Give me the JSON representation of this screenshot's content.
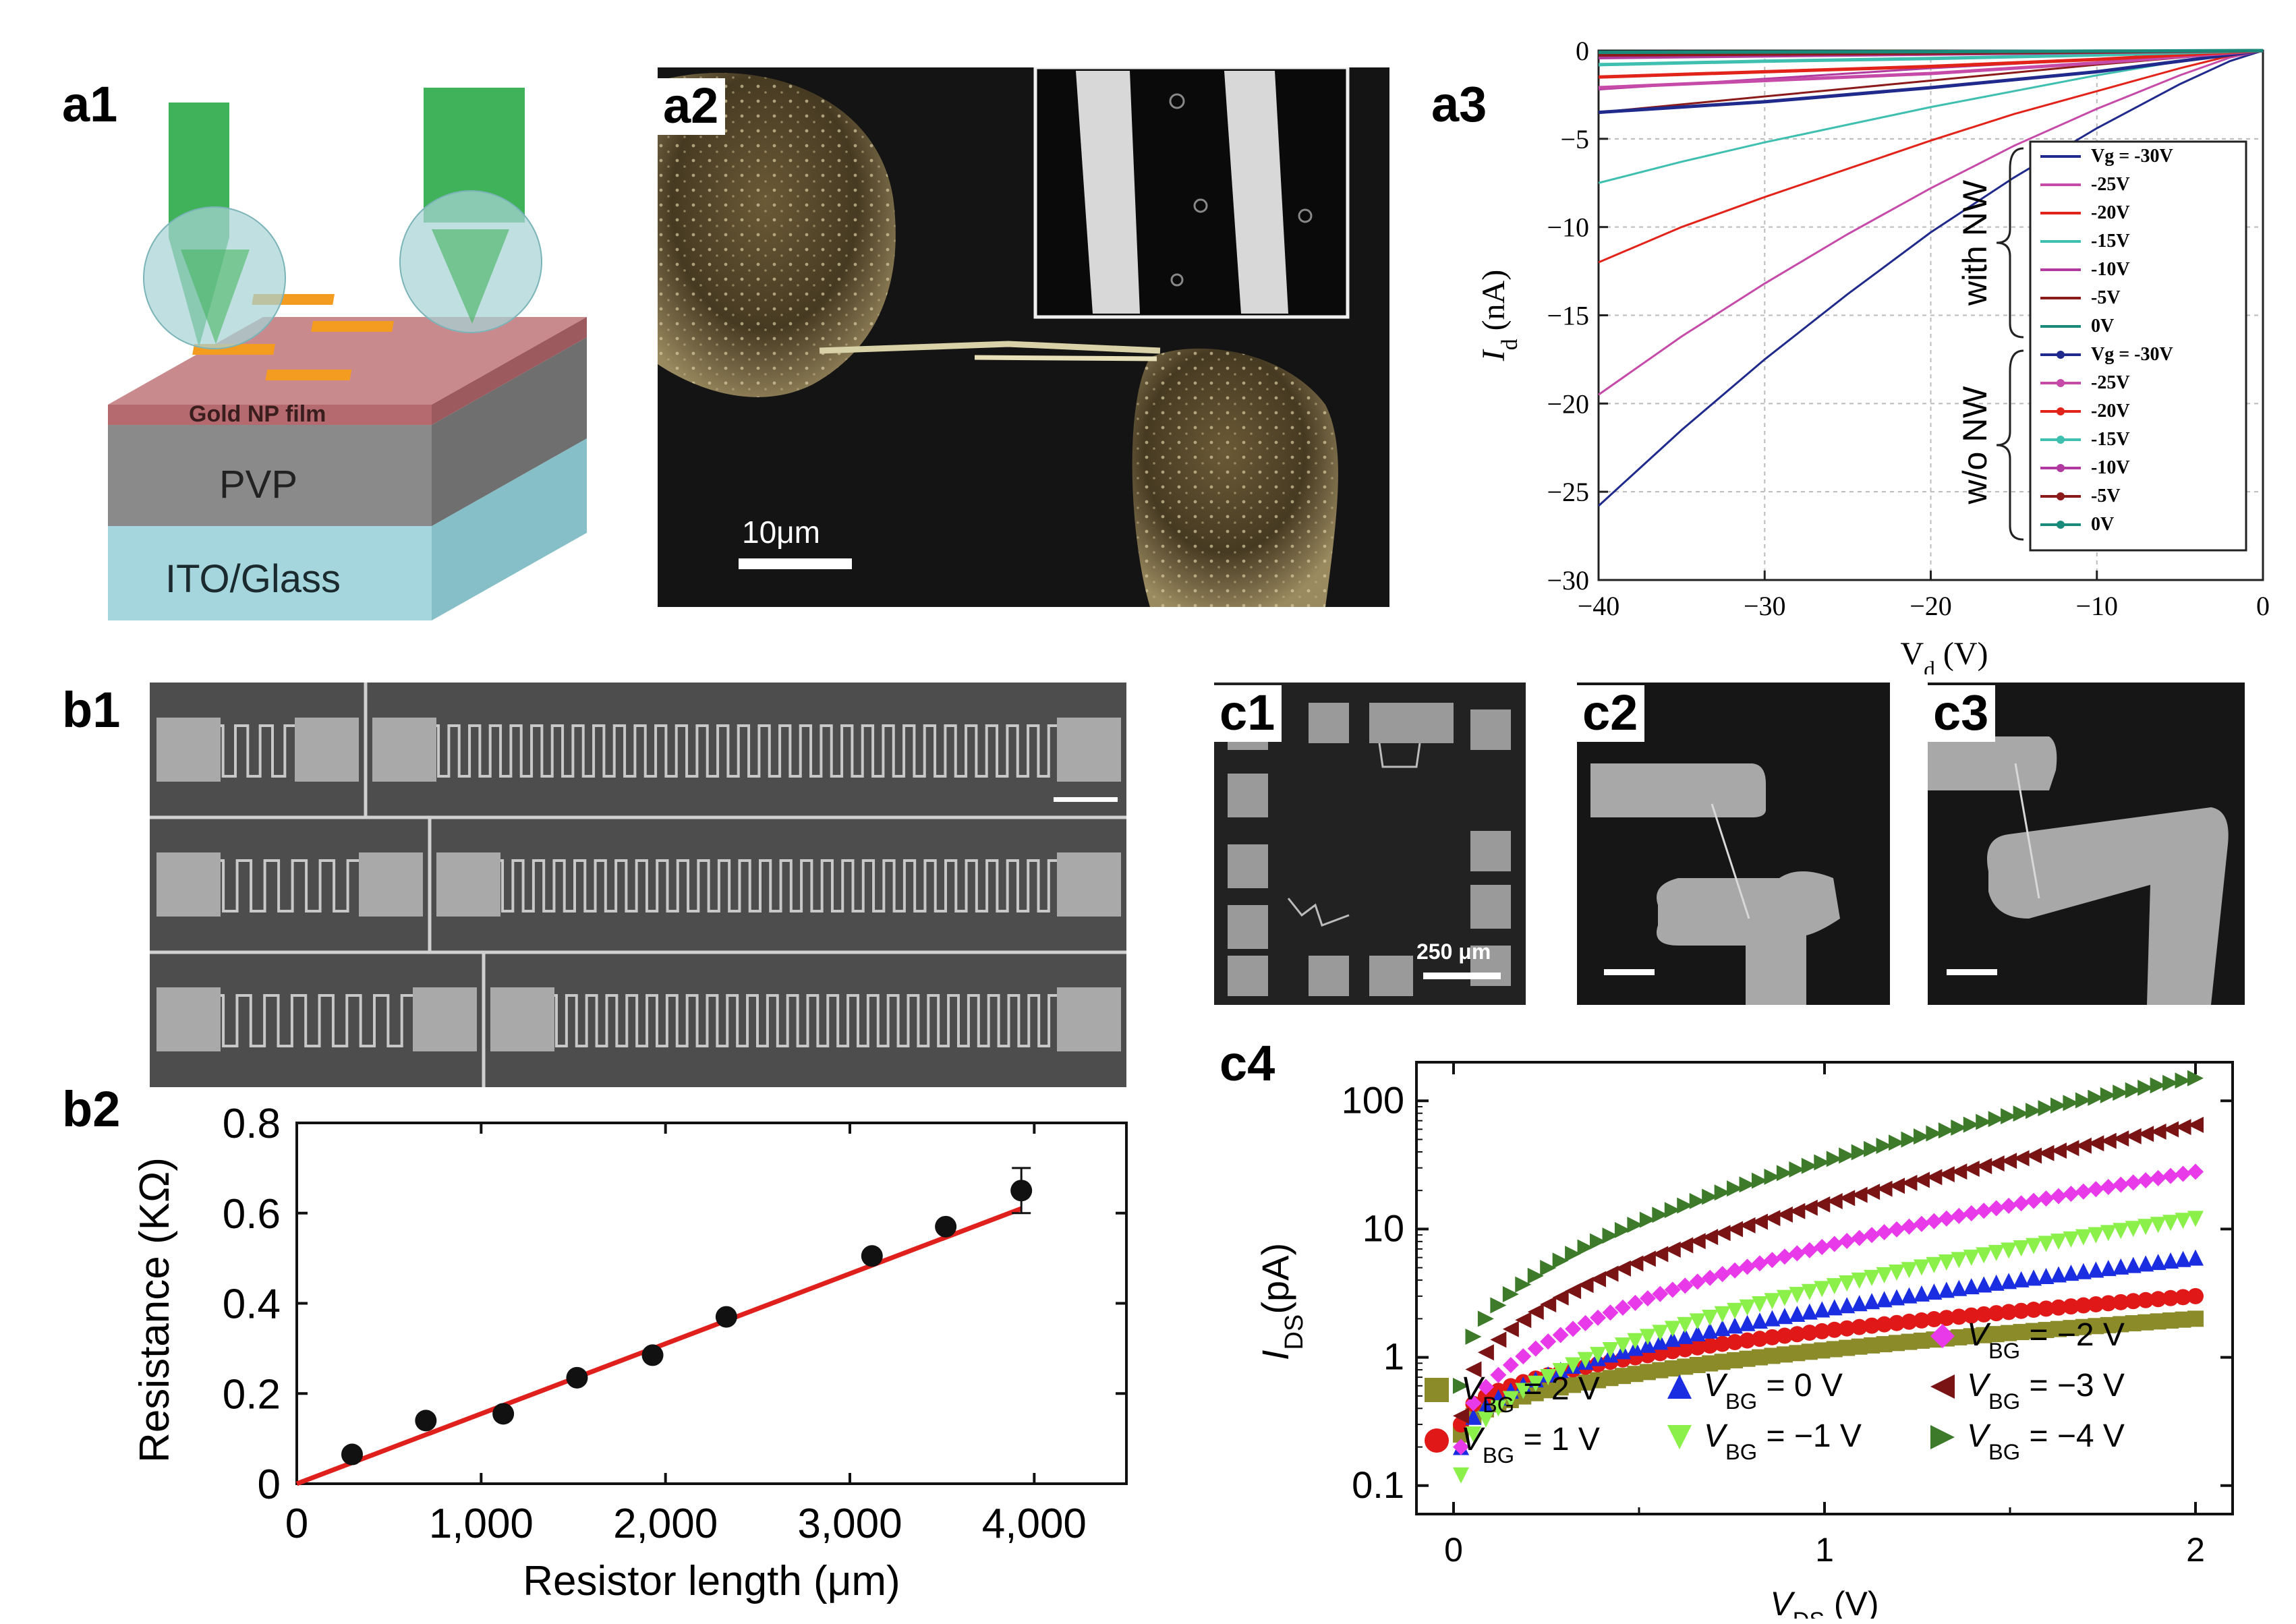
{
  "panels": {
    "a1": "a1",
    "a2": "a2",
    "a3": "a3",
    "b1": "b1",
    "b2": "b2",
    "c1": "c1",
    "c2": "c2",
    "c3": "c3",
    "c4": "c4"
  },
  "a1_diagram": {
    "layer_top": "Gold NP film",
    "layer_mid": "PVP",
    "layer_bottom": "ITO/Glass",
    "colors": {
      "probe": "#3fb25a",
      "top": "#b46a6f",
      "mid": "#8a8a8a",
      "bottom": "#a6d6dd",
      "nanowire": "#f39c1f"
    }
  },
  "a2_image": {
    "scale_bar": "10μm"
  },
  "c1_image": {
    "scale_bar": "250 μm"
  },
  "chart_data": [
    {
      "id": "a3",
      "type": "line",
      "xlabel": "V_d (V)",
      "ylabel": "I_d (nA)",
      "xlim": [
        -40,
        0
      ],
      "ylim": [
        -30,
        0
      ],
      "xticks": [
        -40,
        -30,
        -20,
        -10,
        0
      ],
      "yticks": [
        0,
        -5,
        -10,
        -15,
        -20,
        -25,
        -30
      ],
      "grid": true,
      "group_labels": [
        "with NW",
        "w/o NW"
      ],
      "series": [
        {
          "name": "Vg = -30V",
          "group": "with NW",
          "color": "#1f2a8c",
          "x": [
            -40,
            -35,
            -30,
            -25,
            -20,
            -15,
            -10,
            -5,
            -2,
            0
          ],
          "y": [
            -25.8,
            -21.5,
            -17.5,
            -13.8,
            -10.3,
            -7.2,
            -4.4,
            -1.9,
            -0.6,
            0
          ]
        },
        {
          "name": "-25V",
          "group": "with NW",
          "color": "#c64aa8",
          "x": [
            -40,
            -35,
            -30,
            -25,
            -20,
            -15,
            -10,
            -5,
            -2,
            0
          ],
          "y": [
            -19.5,
            -16.2,
            -13.2,
            -10.4,
            -7.8,
            -5.4,
            -3.3,
            -1.4,
            -0.4,
            0
          ]
        },
        {
          "name": "-20V",
          "group": "with NW",
          "color": "#e2231a",
          "x": [
            -40,
            -35,
            -30,
            -25,
            -20,
            -15,
            -10,
            -5,
            -2,
            0
          ],
          "y": [
            -12,
            -10,
            -8.3,
            -6.7,
            -5.1,
            -3.6,
            -2.3,
            -1.0,
            -0.3,
            0
          ]
        },
        {
          "name": "-15V",
          "group": "with NW",
          "color": "#3fbfb0",
          "x": [
            -40,
            -35,
            -30,
            -25,
            -20,
            -15,
            -10,
            -5,
            -2,
            0
          ],
          "y": [
            -7.5,
            -6.3,
            -5.2,
            -4.2,
            -3.2,
            -2.3,
            -1.4,
            -0.6,
            -0.2,
            0
          ]
        },
        {
          "name": "-10V",
          "group": "with NW",
          "color": "#b03aa0",
          "x": [
            -40,
            -30,
            -20,
            -10,
            0
          ],
          "y": [
            -2.2,
            -1.6,
            -1.0,
            -0.5,
            0
          ]
        },
        {
          "name": "-5V",
          "group": "with NW",
          "color": "#8b1a1a",
          "x": [
            -40,
            -30,
            -20,
            -10,
            0
          ],
          "y": [
            -3.5,
            -2.6,
            -1.7,
            -0.8,
            0
          ]
        },
        {
          "name": "0V",
          "group": "with NW",
          "color": "#1a8a7a",
          "x": [
            -40,
            -30,
            -20,
            -10,
            0
          ],
          "y": [
            -0.2,
            -0.15,
            -0.1,
            -0.05,
            0
          ]
        },
        {
          "name": "Vg = -30V",
          "group": "w/o NW",
          "color": "#1f2a8c",
          "marker": "circle",
          "x": [
            -40,
            -30,
            -20,
            -10,
            0
          ],
          "y": [
            -3.5,
            -2.9,
            -2.1,
            -1.2,
            0
          ]
        },
        {
          "name": "-25V",
          "group": "w/o NW",
          "color": "#c64aa8",
          "marker": "square",
          "x": [
            -40,
            -30,
            -20,
            -10,
            0
          ],
          "y": [
            -2.1,
            -1.7,
            -1.3,
            -0.7,
            0
          ]
        },
        {
          "name": "-20V",
          "group": "w/o NW",
          "color": "#e2231a",
          "marker": "triangle",
          "x": [
            -40,
            -30,
            -20,
            -10,
            0
          ],
          "y": [
            -1.5,
            -1.2,
            -0.9,
            -0.5,
            0
          ]
        },
        {
          "name": "-15V",
          "group": "w/o NW",
          "color": "#3fbfb0",
          "marker": "x",
          "x": [
            -40,
            -30,
            -20,
            -10,
            0
          ],
          "y": [
            -0.8,
            -0.6,
            -0.45,
            -0.25,
            0
          ]
        },
        {
          "name": "-10V",
          "group": "w/o NW",
          "color": "#b03aa0",
          "marker": "star",
          "x": [
            -40,
            -30,
            -20,
            -10,
            0
          ],
          "y": [
            -0.4,
            -0.3,
            -0.2,
            -0.1,
            0
          ]
        },
        {
          "name": "-5V",
          "group": "w/o NW",
          "color": "#8b1a1a",
          "marker": "dot",
          "x": [
            -40,
            -30,
            -20,
            -10,
            0
          ],
          "y": [
            -0.25,
            -0.2,
            -0.15,
            -0.08,
            0
          ]
        },
        {
          "name": "0V",
          "group": "w/o NW",
          "color": "#1a8a7a",
          "marker": "plus",
          "x": [
            -40,
            -30,
            -20,
            -10,
            0
          ],
          "y": [
            -0.1,
            -0.08,
            -0.06,
            -0.03,
            0
          ]
        }
      ]
    },
    {
      "id": "b2",
      "type": "scatter",
      "xlabel": "Resistor length (μm)",
      "ylabel": "Resistance (KΩ)",
      "xlim": [
        0,
        4500
      ],
      "ylim": [
        0,
        0.8
      ],
      "xticks": [
        0,
        1000,
        2000,
        3000,
        4000
      ],
      "xtick_labels": [
        "0",
        "1,000",
        "2,000",
        "3,000",
        "4,000"
      ],
      "yticks": [
        0,
        0.2,
        0.4,
        0.6,
        0.8
      ],
      "ytick_labels": [
        "0",
        "0.2",
        "0.4",
        "0.6",
        "0.8"
      ],
      "points": {
        "x": [
          300,
          700,
          1120,
          1520,
          1930,
          2330,
          3120,
          3520,
          3930
        ],
        "y": [
          0.065,
          0.14,
          0.155,
          0.235,
          0.285,
          0.37,
          0.505,
          0.57,
          0.65
        ]
      },
      "error_bar": {
        "x": 3930,
        "y": 0.65,
        "err": 0.05
      },
      "fit_line": {
        "x": [
          0,
          3930
        ],
        "y": [
          0,
          0.61
        ],
        "color": "#e0201c"
      }
    },
    {
      "id": "c4",
      "type": "scatter",
      "xlabel": "V_DS (V)",
      "ylabel": "I_DS (pA)",
      "xscale": "linear",
      "yscale": "log",
      "xlim": [
        -0.1,
        2.1
      ],
      "ylim": [
        0.06,
        200
      ],
      "xticks": [
        0,
        1,
        2
      ],
      "yticks": [
        0.1,
        1,
        10,
        100
      ],
      "ytick_labels": [
        "0.1",
        "1",
        "10",
        "100"
      ],
      "series": [
        {
          "name": "V_BG = 2 V",
          "marker": "square",
          "color": "#8b8b2a",
          "x_start": 0.02,
          "x_end": 2.0,
          "y_start": 0.25,
          "y_end": 2.0
        },
        {
          "name": "V_BG = 1 V",
          "marker": "circle",
          "color": "#e01818",
          "x_start": 0.02,
          "x_end": 2.0,
          "y_start": 0.3,
          "y_end": 3.0
        },
        {
          "name": "V_BG = 0 V",
          "marker": "triangle-up",
          "color": "#1a2de0",
          "x_start": 0.02,
          "x_end": 2.0,
          "y_start": 0.2,
          "y_end": 6.0
        },
        {
          "name": "V_BG = −1 V",
          "marker": "triangle-down",
          "color": "#8cf04a",
          "x_start": 0.02,
          "x_end": 2.0,
          "y_start": 0.12,
          "y_end": 12.0
        },
        {
          "name": "V_BG = −2 V",
          "marker": "diamond",
          "color": "#e83ae8",
          "x_start": 0.02,
          "x_end": 2.0,
          "y_start": 0.2,
          "y_end": 28.0
        },
        {
          "name": "V_BG = −3 V",
          "marker": "triangle-left",
          "color": "#7a1414",
          "x_start": 0.02,
          "x_end": 2.0,
          "y_start": 0.35,
          "y_end": 65.0
        },
        {
          "name": "V_BG = −4 V",
          "marker": "triangle-right",
          "color": "#3d7a2a",
          "x_start": 0.02,
          "x_end": 2.0,
          "y_start": 0.6,
          "y_end": 150.0
        }
      ]
    }
  ]
}
